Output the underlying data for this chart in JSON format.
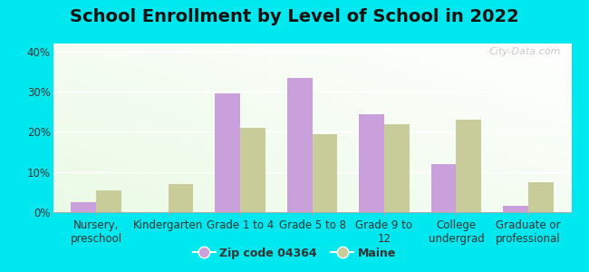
{
  "title": "School Enrollment by Level of School in 2022",
  "categories": [
    "Nursery,\npreschool",
    "Kindergarten",
    "Grade 1 to 4",
    "Grade 5 to 8",
    "Grade 9 to\n12",
    "College\nundergrad",
    "Graduate or\nprofessional"
  ],
  "zip_values": [
    2.5,
    0.0,
    29.5,
    33.5,
    24.5,
    12.0,
    1.5
  ],
  "maine_values": [
    5.5,
    7.0,
    21.0,
    19.5,
    22.0,
    23.0,
    7.5
  ],
  "zip_color": "#c9a0dc",
  "maine_color": "#c8cc99",
  "background_outer": "#00e8ef",
  "ylim": [
    0,
    42
  ],
  "yticks": [
    0,
    10,
    20,
    30,
    40
  ],
  "ytick_labels": [
    "0%",
    "10%",
    "20%",
    "30%",
    "40%"
  ],
  "legend_zip_label": "Zip code 04364",
  "legend_maine_label": "Maine",
  "bar_width": 0.35,
  "title_fontsize": 14,
  "tick_fontsize": 8.5,
  "legend_fontsize": 9,
  "watermark_text": "City-Data.com"
}
